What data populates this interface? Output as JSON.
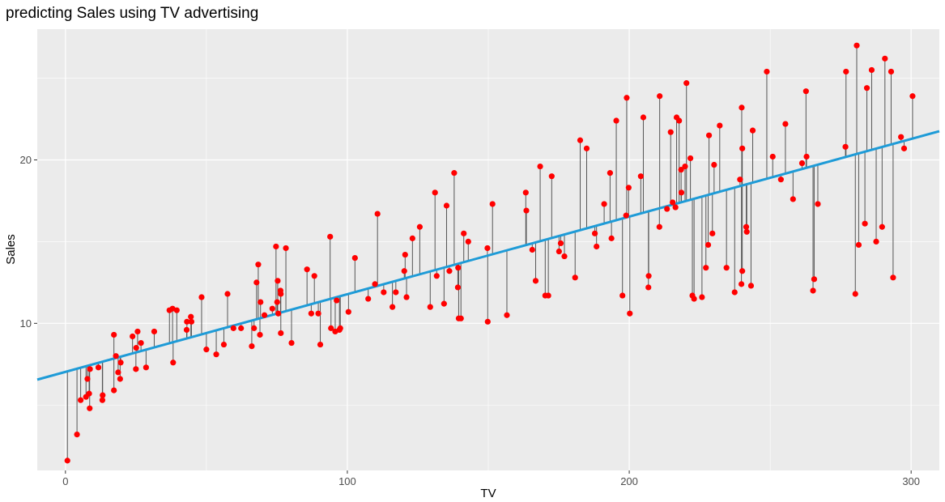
{
  "chart_data": {
    "type": "scatter",
    "title": "predicting Sales using TV advertising",
    "xlabel": "TV",
    "ylabel": "Sales",
    "xlim": [
      -10,
      310
    ],
    "ylim": [
      1,
      28
    ],
    "xticks": [
      0,
      100,
      200,
      300
    ],
    "yticks": [
      10,
      20
    ],
    "grid": true,
    "legend": "none",
    "colors": {
      "points": "#ff0000",
      "fit_line": "#1e9bd7",
      "residuals": "#555555",
      "panel": "#ebebeb",
      "grid": "#ffffff"
    },
    "fit_line": {
      "intercept": 7.03,
      "slope": 0.0475
    },
    "points": [
      [
        0.7,
        1.6
      ],
      [
        4.1,
        3.2
      ],
      [
        5.4,
        5.3
      ],
      [
        7.3,
        5.5
      ],
      [
        7.8,
        6.6
      ],
      [
        8.4,
        5.7
      ],
      [
        8.6,
        4.8
      ],
      [
        8.7,
        7.2
      ],
      [
        11.7,
        7.3
      ],
      [
        13.1,
        5.3
      ],
      [
        13.2,
        5.6
      ],
      [
        17.2,
        5.9
      ],
      [
        17.2,
        9.3
      ],
      [
        17.9,
        8.0
      ],
      [
        18.7,
        7.0
      ],
      [
        19.4,
        6.6
      ],
      [
        19.6,
        7.6
      ],
      [
        23.8,
        9.2
      ],
      [
        25.0,
        7.2
      ],
      [
        25.1,
        8.5
      ],
      [
        25.6,
        9.5
      ],
      [
        26.8,
        8.8
      ],
      [
        28.6,
        7.3
      ],
      [
        31.5,
        9.5
      ],
      [
        36.9,
        10.8
      ],
      [
        38.0,
        10.9
      ],
      [
        38.2,
        7.6
      ],
      [
        39.5,
        10.8
      ],
      [
        43.0,
        9.6
      ],
      [
        43.1,
        10.1
      ],
      [
        44.5,
        10.4
      ],
      [
        44.7,
        10.1
      ],
      [
        48.3,
        11.6
      ],
      [
        50.0,
        8.4
      ],
      [
        53.5,
        8.1
      ],
      [
        56.2,
        8.7
      ],
      [
        57.5,
        11.8
      ],
      [
        59.6,
        9.7
      ],
      [
        62.3,
        9.7
      ],
      [
        66.1,
        8.6
      ],
      [
        66.9,
        9.7
      ],
      [
        67.8,
        12.5
      ],
      [
        68.4,
        13.6
      ],
      [
        69.0,
        9.3
      ],
      [
        69.2,
        11.3
      ],
      [
        70.6,
        10.5
      ],
      [
        73.4,
        10.9
      ],
      [
        74.7,
        14.7
      ],
      [
        75.1,
        11.3
      ],
      [
        75.3,
        12.6
      ],
      [
        75.5,
        10.6
      ],
      [
        76.3,
        12.0
      ],
      [
        76.4,
        9.4
      ],
      [
        76.4,
        11.8
      ],
      [
        78.2,
        14.6
      ],
      [
        80.2,
        8.8
      ],
      [
        85.7,
        13.3
      ],
      [
        87.2,
        10.6
      ],
      [
        88.3,
        12.9
      ],
      [
        89.7,
        10.6
      ],
      [
        90.4,
        8.7
      ],
      [
        93.9,
        15.3
      ],
      [
        94.2,
        9.7
      ],
      [
        95.7,
        9.5
      ],
      [
        96.2,
        11.4
      ],
      [
        97.2,
        9.6
      ],
      [
        97.5,
        9.7
      ],
      [
        100.4,
        10.7
      ],
      [
        102.7,
        14.0
      ],
      [
        107.4,
        11.5
      ],
      [
        109.8,
        12.4
      ],
      [
        110.7,
        16.7
      ],
      [
        112.9,
        11.9
      ],
      [
        116.0,
        11.0
      ],
      [
        117.2,
        11.9
      ],
      [
        120.2,
        13.2
      ],
      [
        120.5,
        14.2
      ],
      [
        121.0,
        11.6
      ],
      [
        123.1,
        15.2
      ],
      [
        125.7,
        15.9
      ],
      [
        129.4,
        11.0
      ],
      [
        131.1,
        18.0
      ],
      [
        131.7,
        12.9
      ],
      [
        134.3,
        11.2
      ],
      [
        135.2,
        17.2
      ],
      [
        136.2,
        13.2
      ],
      [
        137.9,
        19.2
      ],
      [
        139.2,
        12.2
      ],
      [
        139.3,
        13.4
      ],
      [
        139.5,
        10.3
      ],
      [
        140.3,
        10.3
      ],
      [
        141.3,
        15.5
      ],
      [
        142.9,
        15.0
      ],
      [
        149.7,
        14.6
      ],
      [
        149.8,
        10.1
      ],
      [
        151.5,
        17.3
      ],
      [
        156.6,
        10.5
      ],
      [
        163.3,
        18.0
      ],
      [
        163.5,
        16.9
      ],
      [
        165.6,
        14.5
      ],
      [
        166.8,
        12.6
      ],
      [
        168.4,
        19.6
      ],
      [
        170.2,
        11.7
      ],
      [
        171.3,
        11.7
      ],
      [
        172.5,
        19.0
      ],
      [
        175.1,
        14.4
      ],
      [
        175.7,
        14.9
      ],
      [
        177.0,
        14.1
      ],
      [
        180.8,
        12.8
      ],
      [
        182.6,
        21.2
      ],
      [
        184.9,
        20.7
      ],
      [
        187.8,
        15.5
      ],
      [
        188.4,
        14.7
      ],
      [
        191.1,
        17.3
      ],
      [
        193.2,
        19.2
      ],
      [
        193.7,
        15.2
      ],
      [
        195.4,
        22.4
      ],
      [
        197.6,
        11.7
      ],
      [
        198.9,
        16.6
      ],
      [
        199.1,
        23.8
      ],
      [
        199.8,
        18.3
      ],
      [
        200.2,
        10.6
      ],
      [
        204.1,
        19.0
      ],
      [
        205.0,
        22.6
      ],
      [
        206.8,
        12.2
      ],
      [
        206.9,
        12.9
      ],
      [
        210.7,
        15.9
      ],
      [
        210.8,
        23.9
      ],
      [
        213.4,
        17.0
      ],
      [
        214.7,
        21.7
      ],
      [
        215.4,
        17.4
      ],
      [
        216.4,
        17.1
      ],
      [
        216.8,
        22.6
      ],
      [
        217.7,
        22.4
      ],
      [
        218.4,
        19.4
      ],
      [
        218.5,
        18.0
      ],
      [
        219.8,
        19.6
      ],
      [
        220.3,
        24.7
      ],
      [
        221.7,
        20.1
      ],
      [
        222.4,
        11.7
      ],
      [
        223.0,
        11.5
      ],
      [
        225.8,
        11.6
      ],
      [
        227.2,
        13.4
      ],
      [
        228.0,
        14.8
      ],
      [
        228.3,
        21.5
      ],
      [
        229.5,
        15.5
      ],
      [
        230.1,
        19.7
      ],
      [
        232.1,
        22.1
      ],
      [
        234.5,
        13.4
      ],
      [
        237.4,
        11.9
      ],
      [
        239.3,
        18.8
      ],
      [
        239.8,
        12.4
      ],
      [
        240.1,
        20.7
      ],
      [
        241.7,
        15.6
      ],
      [
        243.2,
        12.3
      ],
      [
        239.9,
        23.2
      ],
      [
        240.1,
        13.2
      ],
      [
        241.5,
        15.9
      ],
      [
        243.8,
        21.8
      ],
      [
        248.8,
        25.4
      ],
      [
        250.9,
        20.2
      ],
      [
        253.8,
        18.8
      ],
      [
        255.4,
        22.2
      ],
      [
        258.1,
        17.6
      ],
      [
        261.3,
        19.8
      ],
      [
        262.7,
        24.2
      ],
      [
        262.9,
        20.2
      ],
      [
        265.2,
        12.0
      ],
      [
        265.6,
        12.7
      ],
      [
        266.9,
        17.3
      ],
      [
        276.7,
        20.8
      ],
      [
        276.9,
        25.4
      ],
      [
        280.2,
        11.8
      ],
      [
        280.7,
        27.0
      ],
      [
        281.4,
        14.8
      ],
      [
        283.6,
        16.1
      ],
      [
        284.3,
        24.4
      ],
      [
        286.0,
        25.5
      ],
      [
        287.6,
        15.0
      ],
      [
        289.7,
        15.9
      ],
      [
        290.7,
        26.2
      ],
      [
        292.9,
        25.4
      ],
      [
        293.6,
        12.8
      ],
      [
        296.4,
        21.4
      ],
      [
        297.5,
        20.7
      ],
      [
        300.5,
        23.9
      ]
    ]
  }
}
